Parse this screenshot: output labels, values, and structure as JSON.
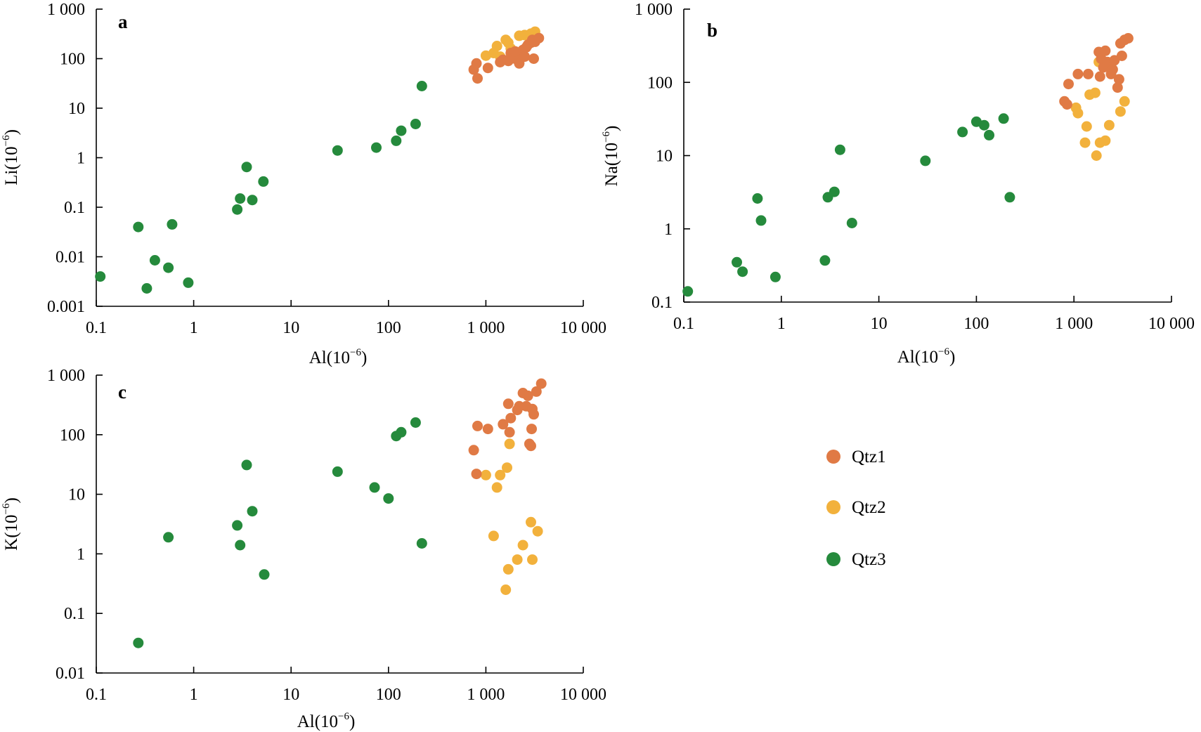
{
  "colors": {
    "Qtz1": "#e07a45",
    "Qtz2": "#f2b13c",
    "Qtz3": "#258a3c"
  },
  "legend": [
    {
      "label": "Qtz1",
      "color": "#e07a45"
    },
    {
      "label": "Qtz2",
      "color": "#f2b13c"
    },
    {
      "label": "Qtz3",
      "color": "#258a3c"
    }
  ],
  "chart_data": [
    {
      "type": "scatter",
      "panel": "a",
      "xlabel": "Al",
      "ylabel": "Li",
      "unit_exponent": "−6",
      "xscale": "log",
      "yscale": "log",
      "xlim": [
        0.1,
        10000
      ],
      "ylim": [
        0.001,
        1000
      ],
      "xticks": [
        "0.1",
        "1",
        "10",
        "100",
        "1 000",
        "10 000"
      ],
      "yticks": [
        "0.001",
        "0.01",
        "0.1",
        "1",
        "10",
        "100",
        "1 000"
      ],
      "series": [
        {
          "name": "Qtz1",
          "points": [
            [
              750,
              60
            ],
            [
              800,
              80
            ],
            [
              820,
              40
            ],
            [
              1050,
              65
            ],
            [
              1400,
              85
            ],
            [
              1500,
              95
            ],
            [
              1700,
              90
            ],
            [
              2000,
              100
            ],
            [
              2100,
              120
            ],
            [
              2200,
              80
            ],
            [
              2300,
              130
            ],
            [
              2400,
              150
            ],
            [
              2500,
              110
            ],
            [
              2600,
              170
            ],
            [
              2700,
              190
            ],
            [
              2900,
              210
            ],
            [
              3000,
              240
            ],
            [
              3100,
              100
            ],
            [
              3200,
              220
            ],
            [
              3500,
              260
            ],
            [
              1800,
              130
            ],
            [
              2000,
              140
            ]
          ]
        },
        {
          "name": "Qtz2",
          "points": [
            [
              1000,
              115
            ],
            [
              1200,
              130
            ],
            [
              1300,
              180
            ],
            [
              1400,
              110
            ],
            [
              1600,
              240
            ],
            [
              1700,
              210
            ],
            [
              1800,
              160
            ],
            [
              2200,
              290
            ],
            [
              2500,
              300
            ],
            [
              2900,
              320
            ],
            [
              3200,
              350
            ]
          ]
        },
        {
          "name": "Qtz3",
          "points": [
            [
              0.11,
              0.004
            ],
            [
              0.27,
              0.04
            ],
            [
              0.33,
              0.0023
            ],
            [
              0.4,
              0.0085
            ],
            [
              0.55,
              0.006
            ],
            [
              0.6,
              0.045
            ],
            [
              0.88,
              0.003
            ],
            [
              2.8,
              0.09
            ],
            [
              3,
              0.15
            ],
            [
              3.5,
              0.65
            ],
            [
              4,
              0.14
            ],
            [
              5.2,
              0.33
            ],
            [
              30,
              1.4
            ],
            [
              75,
              1.6
            ],
            [
              120,
              2.2
            ],
            [
              135,
              3.5
            ],
            [
              190,
              4.8
            ],
            [
              220,
              28
            ]
          ]
        }
      ]
    },
    {
      "type": "scatter",
      "panel": "b",
      "xlabel": "Al",
      "ylabel": "Na",
      "unit_exponent": "−6",
      "xscale": "log",
      "yscale": "log",
      "xlim": [
        0.1,
        10000
      ],
      "ylim": [
        0.1,
        1000
      ],
      "xticks": [
        "0.1",
        "1",
        "10",
        "100",
        "1 000",
        "10 000"
      ],
      "yticks": [
        "0.1",
        "1",
        "10",
        "100",
        "1 000"
      ],
      "series": [
        {
          "name": "Qtz1",
          "points": [
            [
              800,
              55
            ],
            [
              850,
              50
            ],
            [
              880,
              95
            ],
            [
              1100,
              130
            ],
            [
              1400,
              130
            ],
            [
              1800,
              260
            ],
            [
              1900,
              210
            ],
            [
              2000,
              160
            ],
            [
              2100,
              270
            ],
            [
              2200,
              190
            ],
            [
              2400,
              130
            ],
            [
              2500,
              150
            ],
            [
              2600,
              200
            ],
            [
              2800,
              85
            ],
            [
              2900,
              110
            ],
            [
              3000,
              340
            ],
            [
              3100,
              230
            ],
            [
              3300,
              380
            ],
            [
              3600,
              400
            ],
            [
              1850,
              120
            ]
          ]
        },
        {
          "name": "Qtz2",
          "points": [
            [
              1050,
              45
            ],
            [
              1100,
              38
            ],
            [
              1300,
              15
            ],
            [
              1350,
              25
            ],
            [
              1450,
              68
            ],
            [
              1650,
              72
            ],
            [
              1700,
              10
            ],
            [
              1800,
              190
            ],
            [
              1850,
              15
            ],
            [
              2100,
              16
            ],
            [
              2300,
              26
            ],
            [
              3000,
              40
            ],
            [
              3300,
              55
            ]
          ]
        },
        {
          "name": "Qtz3",
          "points": [
            [
              0.11,
              0.14
            ],
            [
              0.35,
              0.35
            ],
            [
              0.4,
              0.26
            ],
            [
              0.57,
              2.6
            ],
            [
              0.62,
              1.3
            ],
            [
              0.87,
              0.22
            ],
            [
              2.8,
              0.37
            ],
            [
              3,
              2.7
            ],
            [
              3.5,
              3.2
            ],
            [
              4,
              12
            ],
            [
              5.3,
              1.2
            ],
            [
              30,
              8.5
            ],
            [
              72,
              21
            ],
            [
              100,
              29
            ],
            [
              120,
              26
            ],
            [
              135,
              19
            ],
            [
              190,
              32
            ],
            [
              220,
              2.7
            ]
          ]
        }
      ]
    },
    {
      "type": "scatter",
      "panel": "c",
      "xlabel": "Al",
      "ylabel": "K",
      "unit_exponent": "−6",
      "xscale": "log",
      "yscale": "log",
      "xlim": [
        0.1,
        10000
      ],
      "ylim": [
        0.01,
        1000
      ],
      "xticks": [
        "0.1",
        "1",
        "10",
        "100",
        "1 000",
        "10 000"
      ],
      "yticks": [
        "0.01",
        "0.1",
        "1",
        "10",
        "100",
        "1 000"
      ],
      "series": [
        {
          "name": "Qtz1",
          "points": [
            [
              750,
              55
            ],
            [
              800,
              22
            ],
            [
              820,
              140
            ],
            [
              1050,
              125
            ],
            [
              1500,
              150
            ],
            [
              1700,
              330
            ],
            [
              1750,
              110
            ],
            [
              1800,
              190
            ],
            [
              2100,
              260
            ],
            [
              2200,
              300
            ],
            [
              2400,
              500
            ],
            [
              2600,
              300
            ],
            [
              2700,
              450
            ],
            [
              2800,
              70
            ],
            [
              2900,
              65
            ],
            [
              2950,
              125
            ],
            [
              3000,
              270
            ],
            [
              3100,
              220
            ],
            [
              3300,
              530
            ],
            [
              3700,
              720
            ]
          ]
        },
        {
          "name": "Qtz2",
          "points": [
            [
              1000,
              21
            ],
            [
              1200,
              2
            ],
            [
              1300,
              13
            ],
            [
              1400,
              21
            ],
            [
              1600,
              0.25
            ],
            [
              1650,
              28
            ],
            [
              1700,
              0.55
            ],
            [
              1750,
              70
            ],
            [
              2100,
              0.8
            ],
            [
              2400,
              1.4
            ],
            [
              2900,
              3.4
            ],
            [
              3000,
              0.8
            ],
            [
              3400,
              2.4
            ]
          ]
        },
        {
          "name": "Qtz3",
          "points": [
            [
              0.27,
              0.032
            ],
            [
              0.55,
              1.9
            ],
            [
              2.8,
              3
            ],
            [
              3,
              1.4
            ],
            [
              3.5,
              31
            ],
            [
              4,
              5.2
            ],
            [
              5.3,
              0.45
            ],
            [
              30,
              24
            ],
            [
              72,
              13
            ],
            [
              100,
              8.5
            ],
            [
              120,
              95
            ],
            [
              135,
              110
            ],
            [
              190,
              160
            ],
            [
              220,
              1.5
            ]
          ]
        }
      ]
    }
  ]
}
